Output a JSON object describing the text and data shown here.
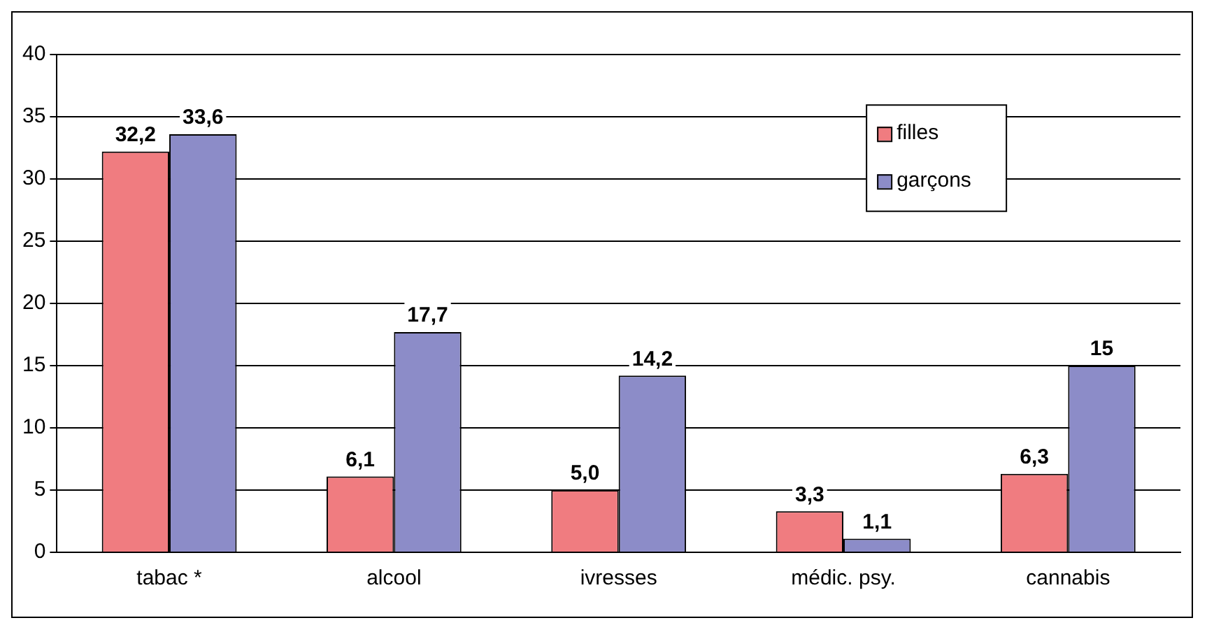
{
  "chart_data": {
    "type": "bar",
    "categories": [
      "tabac *",
      "alcool",
      "ivresses",
      "médic. psy.",
      "cannabis"
    ],
    "series": [
      {
        "name": "filles",
        "color": "#f07c80",
        "values": [
          32.2,
          6.1,
          5.0,
          3.3,
          6.3
        ],
        "value_labels": [
          "32,2",
          "6,1",
          "5,0",
          "3,3",
          "6,3"
        ]
      },
      {
        "name": "garçons",
        "color": "#8c8cc8",
        "values": [
          33.6,
          17.7,
          14.2,
          1.1,
          15
        ],
        "value_labels": [
          "33,6",
          "17,7",
          "14,2",
          "1,1",
          "15"
        ]
      }
    ],
    "ylim": [
      0,
      40
    ],
    "yticks": [
      0,
      5,
      10,
      15,
      20,
      25,
      30,
      35,
      40
    ],
    "grid": "y",
    "legend": "top right"
  }
}
